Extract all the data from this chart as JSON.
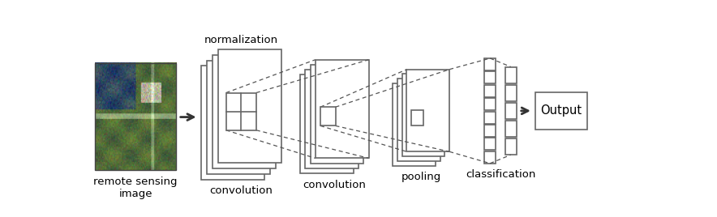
{
  "bg_color": "#ffffff",
  "box_color": "#666666",
  "dashed_color": "#555555",
  "label_normalization": "normalization",
  "label_conv1": "convolution",
  "label_conv2": "convolution",
  "label_pooling": "pooling",
  "label_classification": "classification",
  "label_output": "Output",
  "label_image": "remote sensing\nimage",
  "font_size": 9.5,
  "fig_w": 8.84,
  "fig_h": 2.68
}
